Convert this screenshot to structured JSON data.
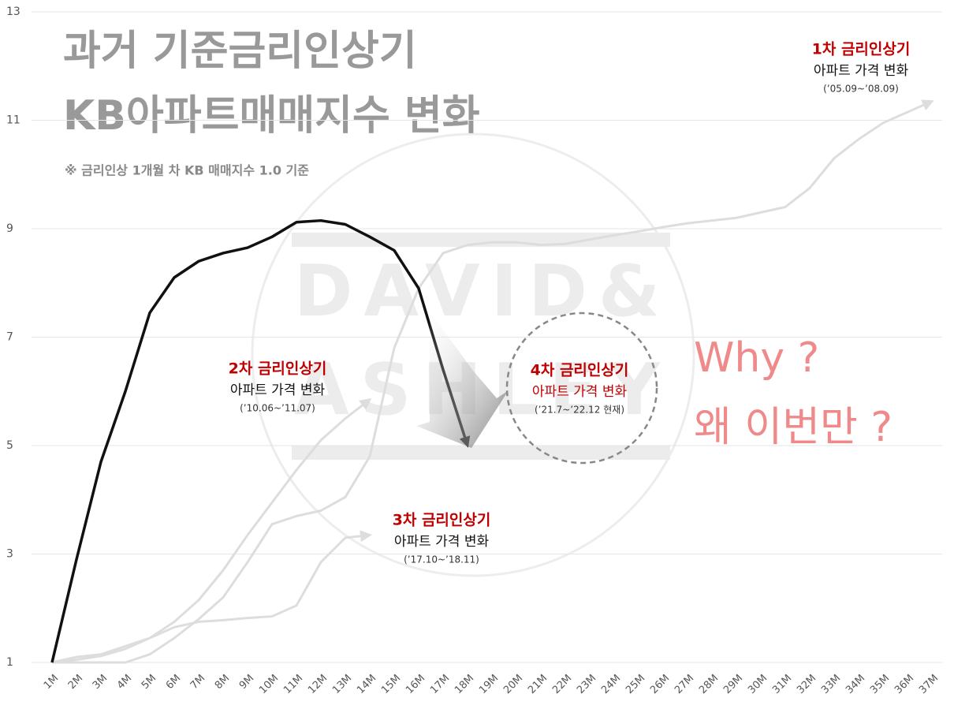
{
  "chart_data": {
    "type": "line",
    "title": [
      "과거 기준금리인상기",
      "KB아파트매매지수 변화"
    ],
    "subtitle": "※ 금리인상 1개월 차 KB 매매지수 1.0 기준",
    "watermark": [
      "DAVID&",
      "ASHLEY"
    ],
    "categories": [
      "1M",
      "2M",
      "3M",
      "4M",
      "5M",
      "6M",
      "7M",
      "8M",
      "9M",
      "10M",
      "11M",
      "12M",
      "13M",
      "14M",
      "15M",
      "16M",
      "17M",
      "18M",
      "19M",
      "20M",
      "21M",
      "22M",
      "23M",
      "24M",
      "25M",
      "26M",
      "27M",
      "28M",
      "29M",
      "30M",
      "31M",
      "32M",
      "33M",
      "34M",
      "35M",
      "36M",
      "37M"
    ],
    "ylim": [
      1,
      13
    ],
    "yticks": [
      1,
      3,
      5,
      7,
      9,
      11,
      13
    ],
    "grid": true,
    "series": [
      {
        "name": "1차",
        "color": "#dddddd",
        "values": [
          1,
          1,
          1,
          1,
          1.15,
          1.45,
          1.8,
          2.2,
          2.85,
          3.55,
          3.7,
          3.8,
          4.05,
          4.8,
          6.8,
          7.9,
          8.55,
          8.7,
          8.75,
          8.75,
          8.7,
          8.72,
          8.8,
          8.88,
          8.95,
          9.03,
          9.1,
          9.15,
          9.2,
          9.3,
          9.4,
          9.75,
          10.3,
          10.65,
          10.95,
          11.15,
          11.35
        ]
      },
      {
        "name": "2차",
        "color": "#dddddd",
        "values": [
          1,
          1.05,
          1.12,
          1.25,
          1.45,
          1.75,
          2.15,
          2.7,
          3.35,
          3.95,
          4.55,
          5.1,
          5.5,
          5.85,
          null,
          null,
          null,
          null,
          null,
          null,
          null,
          null,
          null,
          null,
          null,
          null,
          null,
          null,
          null,
          null,
          null,
          null,
          null,
          null,
          null,
          null,
          null
        ]
      },
      {
        "name": "3차",
        "color": "#dddddd",
        "values": [
          1,
          1.1,
          1.15,
          1.3,
          1.45,
          1.65,
          1.75,
          1.78,
          1.82,
          1.85,
          2.05,
          2.85,
          3.3,
          3.35,
          null,
          null,
          null,
          null,
          null,
          null,
          null,
          null,
          null,
          null,
          null,
          null,
          null,
          null,
          null,
          null,
          null,
          null,
          null,
          null,
          null,
          null,
          null
        ]
      },
      {
        "name": "4차",
        "color": "#111111",
        "values": [
          1,
          2.9,
          4.7,
          6.0,
          7.45,
          8.1,
          8.4,
          8.55,
          8.65,
          8.85,
          9.12,
          9.15,
          9.08,
          8.85,
          8.6,
          7.9,
          6.4,
          5.0,
          null,
          null,
          null,
          null,
          null,
          null,
          null,
          null,
          null,
          null,
          null,
          null,
          null,
          null,
          null,
          null,
          null,
          null,
          null
        ]
      }
    ],
    "annotations": [
      {
        "title": "1차 금리인상기",
        "subtitle": "아파트 가격 변화",
        "period": "(’05.09~’08.09)"
      },
      {
        "title": "2차 금리인상기",
        "subtitle": "아파트 가격 변화",
        "period": "(’10.06~’11.07)"
      },
      {
        "title": "3차 금리인상기",
        "subtitle": "아파트 가격 변화",
        "period": "(’17.10~’18.11)"
      },
      {
        "title": "4차 금리인상기",
        "subtitle": "아파트 가격 변화",
        "period": "(’21.7~’22.12 현재)"
      }
    ],
    "callout": [
      "Why ?",
      "왜 이번만 ?"
    ]
  }
}
